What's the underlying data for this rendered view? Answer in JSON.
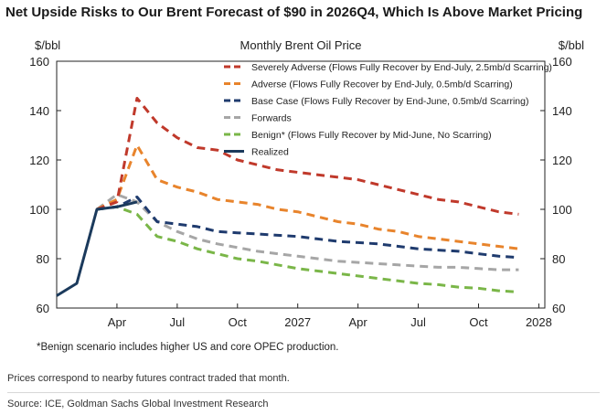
{
  "headline": "Net Upside Risks to Our Brent Forecast of $90 in 2026Q4, Which Is Above Market Pricing",
  "footer_note": "Prices correspond to nearby futures contract traded that month.",
  "source": "Source: ICE, Goldman Sachs Global Investment Research",
  "chart_data": {
    "type": "line",
    "title": "Monthly Brent Oil Price",
    "ylabel_left": "$/bbl",
    "ylabel_right": "$/bbl",
    "ylim": [
      60,
      160
    ],
    "yticks": [
      60,
      80,
      100,
      120,
      140,
      160
    ],
    "xlim": [
      0,
      24.3
    ],
    "xticks": [
      {
        "x": 3,
        "label": "Apr"
      },
      {
        "x": 6,
        "label": "Jul"
      },
      {
        "x": 9,
        "label": "Oct"
      },
      {
        "x": 12,
        "label": "2027"
      },
      {
        "x": 15,
        "label": "Apr"
      },
      {
        "x": 18,
        "label": "Jul"
      },
      {
        "x": 21,
        "label": "Oct"
      },
      {
        "x": 24,
        "label": "2028"
      }
    ],
    "footnote": "*Benign scenario includes higher US and core OPEC production.",
    "series": [
      {
        "name": "Severely Adverse (Flows Fully Recover by End-July, 2.5mb/d Scarring)",
        "color": "#c0392b",
        "dash": "dash",
        "x": [
          2,
          3,
          4,
          5,
          6,
          7,
          8,
          9,
          10,
          11,
          12,
          13,
          14,
          15,
          16,
          17,
          18,
          19,
          20,
          21,
          22,
          23
        ],
        "y": [
          100,
          103,
          145,
          135,
          129,
          125,
          124,
          120,
          118,
          116,
          115,
          114,
          113,
          112,
          110,
          108,
          106,
          104,
          103,
          101,
          99,
          98
        ]
      },
      {
        "name": "Adverse (Flows Fully Recover by End-July, 0.5mb/d Scarring)",
        "color": "#e8842c",
        "dash": "dash",
        "x": [
          2,
          3,
          4,
          5,
          6,
          7,
          8,
          9,
          10,
          11,
          12,
          13,
          14,
          15,
          16,
          17,
          18,
          19,
          20,
          21,
          22,
          23
        ],
        "y": [
          100,
          104,
          126,
          112,
          109,
          107,
          104,
          103,
          102,
          100,
          99,
          97,
          95,
          94,
          92,
          91,
          89,
          88,
          87,
          86,
          85,
          84
        ]
      },
      {
        "name": "Base Case (Flows Fully Recover by End-June, 0.5mb/d Scarring)",
        "color": "#1f3b6e",
        "dash": "dash",
        "x": [
          2,
          3,
          4,
          5,
          6,
          7,
          8,
          9,
          10,
          11,
          12,
          13,
          14,
          15,
          16,
          17,
          18,
          19,
          20,
          21,
          22,
          23
        ],
        "y": [
          100,
          101,
          105,
          95,
          94,
          93,
          91,
          90.5,
          90,
          89.5,
          89,
          88,
          87,
          86.5,
          86,
          85,
          84,
          83.5,
          83,
          82,
          81,
          80.5
        ]
      },
      {
        "name": "Forwards",
        "color": "#a6a6a6",
        "dash": "dash",
        "x": [
          2,
          3,
          4,
          5,
          6,
          7,
          8,
          9,
          10,
          11,
          12,
          13,
          14,
          15,
          16,
          17,
          18,
          19,
          20,
          21,
          22,
          23
        ],
        "y": [
          100,
          106,
          103,
          95,
          91,
          88,
          86,
          84.5,
          83,
          82,
          81,
          80,
          79,
          78.5,
          78,
          77.5,
          77,
          76.5,
          76.5,
          76,
          75.5,
          75.5
        ]
      },
      {
        "name": "Benign* (Flows Fully Recover by Mid-June, No Scarring)",
        "color": "#7ab648",
        "dash": "dash",
        "x": [
          2,
          3,
          4,
          5,
          6,
          7,
          8,
          9,
          10,
          11,
          12,
          13,
          14,
          15,
          16,
          17,
          18,
          19,
          20,
          21,
          22,
          23
        ],
        "y": [
          100,
          101,
          98,
          89,
          87,
          84,
          82,
          80,
          79,
          77.5,
          76,
          75,
          74,
          73,
          72,
          71,
          70,
          69.5,
          68.5,
          68,
          67,
          66.5
        ]
      },
      {
        "name": "Realized",
        "color": "#1b3a5c",
        "dash": "solid",
        "x": [
          0,
          1,
          2,
          3,
          4
        ],
        "y": [
          65,
          70,
          100,
          101,
          103
        ]
      }
    ]
  }
}
